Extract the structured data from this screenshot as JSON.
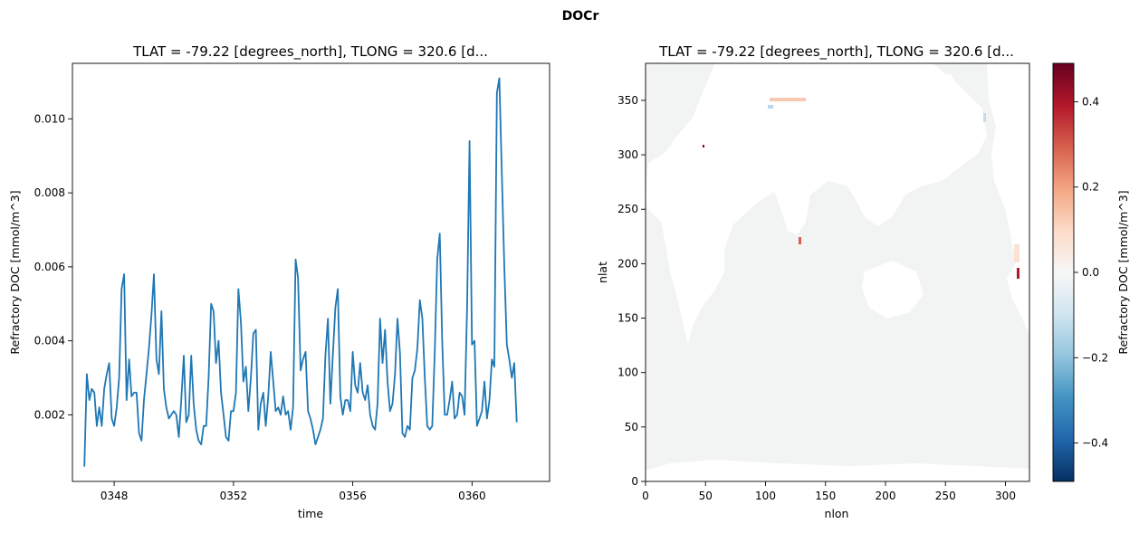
{
  "suptitle": "DOCr",
  "chart_data": [
    {
      "type": "line",
      "title": "TLAT = -79.22 [degrees_north], TLONG = 320.6 [d...",
      "xlabel": "time",
      "ylabel": "Refractory DOC [mmol/m^3]",
      "xlim": [
        346.6,
        362.6
      ],
      "ylim": [
        0.0002,
        0.0115
      ],
      "xticks": [
        348,
        352,
        356,
        360
      ],
      "xtick_labels": [
        "0348",
        "0352",
        "0356",
        "0360"
      ],
      "yticks": [
        0.002,
        0.004,
        0.006,
        0.008,
        0.01
      ],
      "ytick_labels": [
        "0.002",
        "0.004",
        "0.006",
        "0.008",
        "0.010"
      ],
      "grid": false,
      "series": [
        {
          "color": "#1f77b4",
          "x_start": 347.0,
          "x_step": 0.08333,
          "values": [
            0.0006,
            0.0031,
            0.0024,
            0.0027,
            0.0026,
            0.0017,
            0.0022,
            0.0017,
            0.0027,
            0.0031,
            0.0034,
            0.0019,
            0.0017,
            0.0022,
            0.003,
            0.0054,
            0.0058,
            0.0024,
            0.0035,
            0.0025,
            0.0026,
            0.0026,
            0.0015,
            0.0013,
            0.0024,
            0.0031,
            0.0038,
            0.0047,
            0.0058,
            0.0035,
            0.0031,
            0.0048,
            0.0027,
            0.0022,
            0.0019,
            0.002,
            0.0021,
            0.002,
            0.0014,
            0.0024,
            0.0036,
            0.0018,
            0.002,
            0.0036,
            0.0023,
            0.0016,
            0.0013,
            0.0012,
            0.0017,
            0.0017,
            0.003,
            0.005,
            0.0048,
            0.0034,
            0.004,
            0.0026,
            0.002,
            0.0014,
            0.0013,
            0.0021,
            0.0021,
            0.0026,
            0.0054,
            0.0045,
            0.0029,
            0.0033,
            0.0021,
            0.003,
            0.0042,
            0.0043,
            0.0016,
            0.0023,
            0.0026,
            0.0017,
            0.0025,
            0.0037,
            0.0029,
            0.0021,
            0.0022,
            0.002,
            0.0025,
            0.002,
            0.0021,
            0.0016,
            0.0022,
            0.0062,
            0.0057,
            0.0032,
            0.0035,
            0.0037,
            0.0021,
            0.0019,
            0.0016,
            0.0012,
            0.0014,
            0.0016,
            0.0019,
            0.0036,
            0.0046,
            0.0023,
            0.0036,
            0.0049,
            0.0054,
            0.0025,
            0.002,
            0.0024,
            0.0024,
            0.0021,
            0.0037,
            0.0028,
            0.0026,
            0.0034,
            0.0026,
            0.0024,
            0.0028,
            0.002,
            0.0017,
            0.0016,
            0.0023,
            0.0046,
            0.0034,
            0.0043,
            0.0029,
            0.0021,
            0.0023,
            0.0031,
            0.0046,
            0.0037,
            0.0015,
            0.0014,
            0.0017,
            0.0016,
            0.003,
            0.0032,
            0.0038,
            0.0051,
            0.0046,
            0.003,
            0.0017,
            0.0016,
            0.0017,
            0.0037,
            0.0062,
            0.0069,
            0.004,
            0.002,
            0.002,
            0.0024,
            0.0029,
            0.0019,
            0.002,
            0.0026,
            0.0025,
            0.002,
            0.0049,
            0.0094,
            0.0039,
            0.004,
            0.0017,
            0.0019,
            0.0021,
            0.0029,
            0.0019,
            0.0024,
            0.0035,
            0.0033,
            0.0107,
            0.0111,
            0.0085,
            0.006,
            0.0039,
            0.0035,
            0.003,
            0.0034,
            0.0018
          ]
        }
      ]
    },
    {
      "type": "heatmap",
      "title": "TLAT = -79.22 [degrees_north], TLONG = 320.6 [d...",
      "xlabel": "nlon",
      "ylabel": "nlat",
      "xlim": [
        0,
        320
      ],
      "ylim": [
        0,
        384
      ],
      "xticks": [
        0,
        50,
        100,
        150,
        200,
        250,
        300
      ],
      "yticks": [
        0,
        50,
        100,
        150,
        200,
        250,
        300,
        350
      ],
      "colormap": "RdBu_r",
      "colorbar": {
        "label": "Refractory DOC [mmol/m^3]",
        "vmin": -0.49,
        "vmax": 0.49,
        "ticks": [
          -0.4,
          -0.2,
          0.0,
          0.2,
          0.4
        ],
        "tick_labels": [
          "−0.4",
          "−0.2",
          "0.0",
          "0.2",
          "0.4"
        ]
      },
      "colors": {
        "ocean": "#f2f3f3",
        "land": "#ffffff"
      }
    }
  ]
}
